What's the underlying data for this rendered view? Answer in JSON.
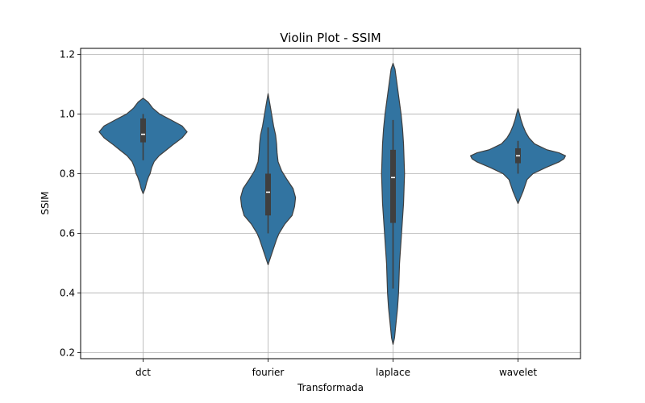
{
  "chart_data": {
    "type": "violin",
    "title": "Violin Plot - SSIM",
    "xlabel": "Transformada",
    "ylabel": "SSIM",
    "categories": [
      "dct",
      "fourier",
      "laplace",
      "wavelet"
    ],
    "ylim": [
      0.18,
      1.22
    ],
    "yticks": [
      0.2,
      0.4,
      0.6,
      0.8,
      1.0,
      1.2
    ],
    "ytick_labels": [
      "0.2",
      "0.4",
      "0.6",
      "0.8",
      "1.0",
      "1.2"
    ],
    "grid": true,
    "color": "#3274a1",
    "box_color": "#3f3f3f",
    "violins": [
      {
        "name": "dct",
        "range": [
          0.733,
          1.053
        ],
        "density": [
          [
            0.733,
            0
          ],
          [
            0.75,
            0.04
          ],
          [
            0.77,
            0.07
          ],
          [
            0.79,
            0.11
          ],
          [
            0.8,
            0.14
          ],
          [
            0.82,
            0.17
          ],
          [
            0.84,
            0.22
          ],
          [
            0.86,
            0.32
          ],
          [
            0.88,
            0.47
          ],
          [
            0.9,
            0.62
          ],
          [
            0.92,
            0.78
          ],
          [
            0.94,
            0.88
          ],
          [
            0.96,
            0.78
          ],
          [
            0.98,
            0.56
          ],
          [
            1.0,
            0.33
          ],
          [
            1.02,
            0.19
          ],
          [
            1.04,
            0.1
          ],
          [
            1.053,
            0
          ]
        ],
        "q1": 0.905,
        "median": 0.932,
        "q3": 0.985,
        "whisker_low": 0.845,
        "whisker_high": 1.0
      },
      {
        "name": "fourier",
        "range": [
          0.495,
          1.068
        ],
        "density": [
          [
            0.495,
            0
          ],
          [
            0.52,
            0.05
          ],
          [
            0.55,
            0.11
          ],
          [
            0.58,
            0.17
          ],
          [
            0.6,
            0.22
          ],
          [
            0.63,
            0.33
          ],
          [
            0.66,
            0.48
          ],
          [
            0.69,
            0.53
          ],
          [
            0.72,
            0.55
          ],
          [
            0.75,
            0.5
          ],
          [
            0.78,
            0.38
          ],
          [
            0.81,
            0.27
          ],
          [
            0.84,
            0.2
          ],
          [
            0.87,
            0.18
          ],
          [
            0.9,
            0.17
          ],
          [
            0.93,
            0.15
          ],
          [
            0.96,
            0.11
          ],
          [
            0.99,
            0.08
          ],
          [
            1.02,
            0.05
          ],
          [
            1.068,
            0
          ]
        ],
        "q1": 0.66,
        "median": 0.738,
        "q3": 0.8,
        "whisker_low": 0.6,
        "whisker_high": 0.955
      },
      {
        "name": "laplace",
        "range": [
          0.228,
          1.17
        ],
        "density": [
          [
            0.228,
            0
          ],
          [
            0.25,
            0.03
          ],
          [
            0.3,
            0.06
          ],
          [
            0.35,
            0.09
          ],
          [
            0.4,
            0.11
          ],
          [
            0.45,
            0.12
          ],
          [
            0.5,
            0.13
          ],
          [
            0.55,
            0.15
          ],
          [
            0.6,
            0.17
          ],
          [
            0.65,
            0.19
          ],
          [
            0.7,
            0.21
          ],
          [
            0.75,
            0.22
          ],
          [
            0.8,
            0.23
          ],
          [
            0.85,
            0.22
          ],
          [
            0.9,
            0.21
          ],
          [
            0.95,
            0.19
          ],
          [
            1.0,
            0.16
          ],
          [
            1.05,
            0.12
          ],
          [
            1.1,
            0.08
          ],
          [
            1.15,
            0.04
          ],
          [
            1.17,
            0
          ]
        ],
        "q1": 0.635,
        "median": 0.787,
        "q3": 0.88,
        "whisker_low": 0.415,
        "whisker_high": 0.98
      },
      {
        "name": "wavelet",
        "range": [
          0.7,
          1.018
        ],
        "density": [
          [
            0.7,
            0
          ],
          [
            0.72,
            0.05
          ],
          [
            0.74,
            0.1
          ],
          [
            0.76,
            0.14
          ],
          [
            0.78,
            0.18
          ],
          [
            0.8,
            0.3
          ],
          [
            0.82,
            0.55
          ],
          [
            0.84,
            0.83
          ],
          [
            0.85,
            0.92
          ],
          [
            0.86,
            0.95
          ],
          [
            0.87,
            0.82
          ],
          [
            0.88,
            0.58
          ],
          [
            0.9,
            0.33
          ],
          [
            0.92,
            0.22
          ],
          [
            0.94,
            0.15
          ],
          [
            0.96,
            0.1
          ],
          [
            0.98,
            0.06
          ],
          [
            1.0,
            0.03
          ],
          [
            1.018,
            0
          ]
        ],
        "q1": 0.835,
        "median": 0.86,
        "q3": 0.885,
        "whisker_low": 0.8,
        "whisker_high": 0.91
      }
    ]
  }
}
